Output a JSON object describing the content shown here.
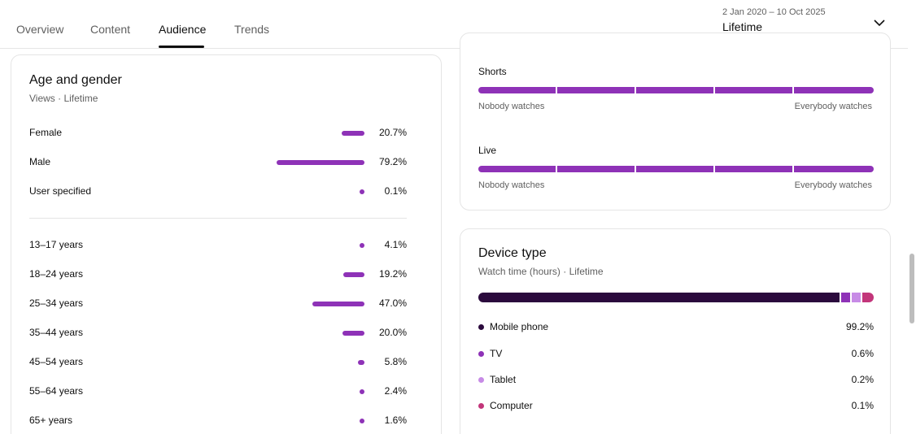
{
  "tabs": [
    {
      "label": "Overview"
    },
    {
      "label": "Content"
    },
    {
      "label": "Audience"
    },
    {
      "label": "Trends"
    }
  ],
  "date_picker": {
    "range": "2 Jan 2020 – 10 Oct 2025",
    "period": "Lifetime",
    "icon": "chevron-down-icon"
  },
  "age_gender": {
    "title": "Age and gender",
    "subtitle": "Views · Lifetime",
    "gender": [
      {
        "label": "Female",
        "value": "20.7%",
        "pct": 20.7
      },
      {
        "label": "Male",
        "value": "79.2%",
        "pct": 79.2
      },
      {
        "label": "User specified",
        "value": "0.1%",
        "pct": 0.1
      }
    ],
    "age": [
      {
        "label": "13–17 years",
        "value": "4.1%",
        "pct": 4.1
      },
      {
        "label": "18–24 years",
        "value": "19.2%",
        "pct": 19.2
      },
      {
        "label": "25–34 years",
        "value": "47.0%",
        "pct": 47.0
      },
      {
        "label": "35–44 years",
        "value": "20.0%",
        "pct": 20.0
      },
      {
        "label": "45–54 years",
        "value": "5.8%",
        "pct": 5.8
      },
      {
        "label": "55–64 years",
        "value": "2.4%",
        "pct": 2.4
      },
      {
        "label": "65+ years",
        "value": "1.6%",
        "pct": 1.6
      }
    ]
  },
  "formats": {
    "shorts": {
      "label": "Shorts",
      "min": "Nobody watches",
      "max": "Everybody watches",
      "level": 1.0
    },
    "live": {
      "label": "Live",
      "min": "Nobody watches",
      "max": "Everybody watches",
      "level": 1.0
    }
  },
  "device_type": {
    "title": "Device type",
    "subtitle": "Watch time (hours) · Lifetime",
    "items": [
      {
        "label": "Mobile phone",
        "value": "99.2%",
        "color": "#2b0a3d"
      },
      {
        "label": "TV",
        "value": "0.6%",
        "color": "#8e32b7"
      },
      {
        "label": "Tablet",
        "value": "0.2%",
        "color": "#c78be6"
      },
      {
        "label": "Computer",
        "value": "0.1%",
        "color": "#c2357a"
      }
    ]
  },
  "colors": {
    "accent": "#8e32b7"
  }
}
